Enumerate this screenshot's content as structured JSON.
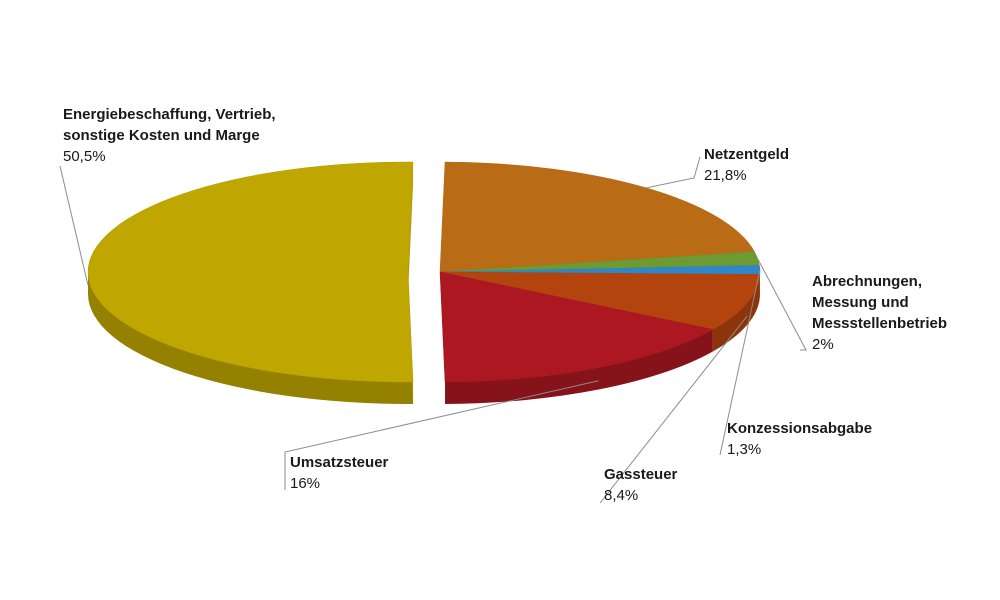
{
  "chart_data": {
    "type": "pie",
    "style": "3d-exploded",
    "slices": [
      {
        "id": "energie",
        "label": "Energiebeschaffung, Vertrieb,\nsonstige Kosten und Marge",
        "value": 50.5,
        "value_label": "50,5%",
        "color": "#BFA600"
      },
      {
        "id": "netz",
        "label": "Netzentgeld",
        "value": 21.8,
        "value_label": "21,8%",
        "color": "#B96B16"
      },
      {
        "id": "abrechnung",
        "label": "Abrechnungen,\nMessung und\nMessstellenbetrieb",
        "value": 2.0,
        "value_label": "2%",
        "color": "#6E9A34"
      },
      {
        "id": "konzession",
        "label": "Konzessionsabgabe",
        "value": 1.3,
        "value_label": "1,3%",
        "color": "#2F86C9"
      },
      {
        "id": "gas",
        "label": "Gassteuer",
        "value": 8.4,
        "value_label": "8,4%",
        "color": "#B4440E"
      },
      {
        "id": "ust",
        "label": "Umsatzsteuer",
        "value": 16.0,
        "value_label": "16%",
        "color": "#AC1721"
      }
    ]
  }
}
